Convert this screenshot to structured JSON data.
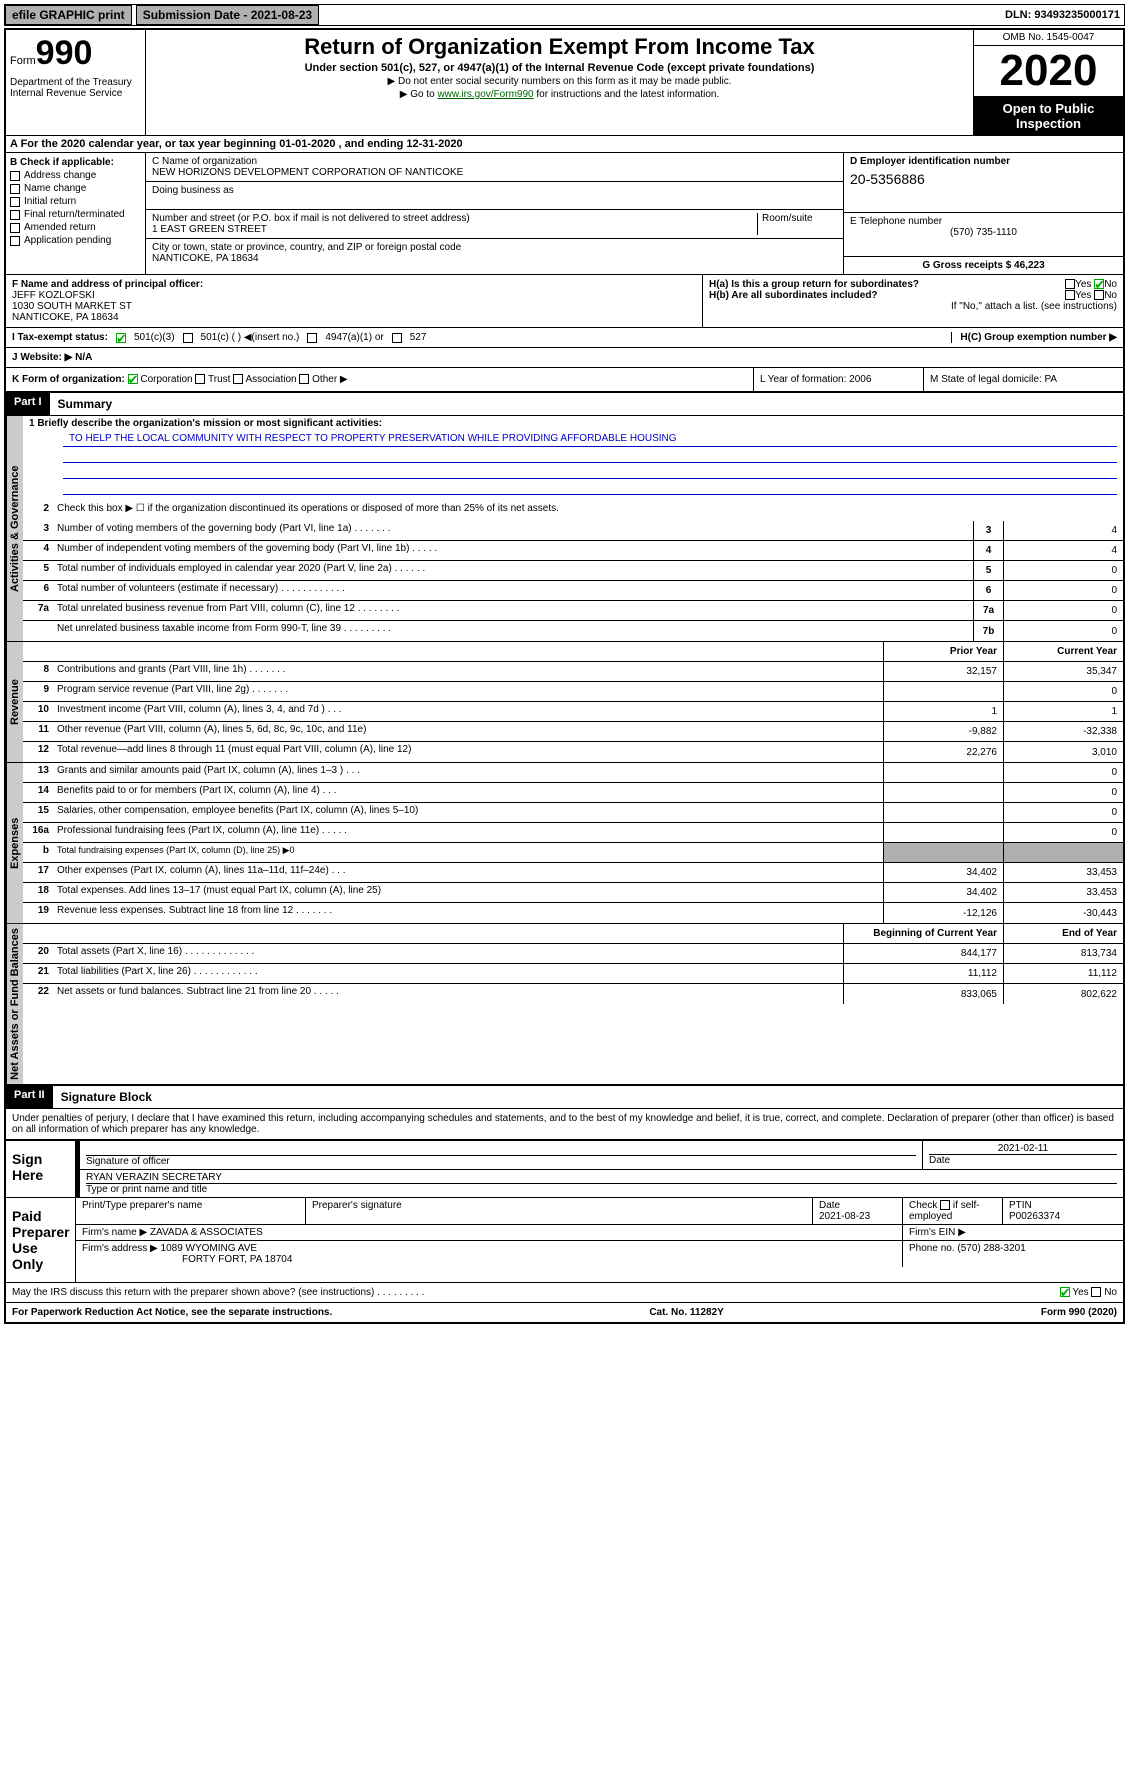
{
  "topbar": {
    "efile": "efile GRAPHIC print",
    "subdate_label": "Submission Date - 2021-08-23",
    "dln": "DLN: 93493235000171"
  },
  "header": {
    "form_label": "Form",
    "form_num": "990",
    "title": "Return of Organization Exempt From Income Tax",
    "subtitle": "Under section 501(c), 527, or 4947(a)(1) of the Internal Revenue Code (except private foundations)",
    "note1": "▶ Do not enter social security numbers on this form as it may be made public.",
    "note2_pre": "▶ Go to ",
    "note2_link": "www.irs.gov/Form990",
    "note2_post": " for instructions and the latest information.",
    "dept": "Department of the Treasury\nInternal Revenue Service",
    "omb": "OMB No. 1545-0047",
    "year": "2020",
    "open": "Open to Public Inspection"
  },
  "period": "A For the 2020 calendar year, or tax year beginning 01-01-2020    , and ending 12-31-2020",
  "checkboxes": {
    "title": "B Check if applicable:",
    "items": [
      "Address change",
      "Name change",
      "Initial return",
      "Final return/terminated",
      "Amended return",
      "Application pending"
    ]
  },
  "org": {
    "name_label": "C Name of organization",
    "name": "NEW HORIZONS DEVELOPMENT CORPORATION OF NANTICOKE",
    "dba_label": "Doing business as",
    "addr_label": "Number and street (or P.O. box if mail is not delivered to street address)",
    "room_label": "Room/suite",
    "addr": "1 EAST GREEN STREET",
    "city_label": "City or town, state or province, country, and ZIP or foreign postal code",
    "city": "NANTICOKE, PA  18634"
  },
  "ein": {
    "label": "D Employer identification number",
    "value": "20-5356886"
  },
  "phone": {
    "label": "E Telephone number",
    "value": "(570) 735-1110"
  },
  "gross": {
    "label": "G Gross receipts $ 46,223"
  },
  "officer": {
    "label": "F  Name and address of principal officer:",
    "name": "JEFF KOZLOFSKI",
    "addr1": "1030 SOUTH MARKET ST",
    "addr2": "NANTICOKE, PA  18634"
  },
  "h": {
    "a": "H(a)  Is this a group return for subordinates?",
    "b": "H(b)  Are all subordinates included?",
    "note": "If \"No,\" attach a list. (see instructions)",
    "c": "H(C)  Group exemption number ▶",
    "yes": "Yes",
    "no": "No"
  },
  "tax_status": {
    "label": "I    Tax-exempt status:",
    "opts": [
      "501(c)(3)",
      "501(c) (   ) ◀(insert no.)",
      "4947(a)(1) or",
      "527"
    ]
  },
  "website": {
    "label": "J    Website: ▶",
    "value": "N/A"
  },
  "k": {
    "label": "K Form of organization:",
    "opts": [
      "Corporation",
      "Trust",
      "Association",
      "Other ▶"
    ],
    "l": "L Year of formation: 2006",
    "m": "M State of legal domicile: PA"
  },
  "part1": {
    "header": "Part I",
    "title": "Summary",
    "line1": "1  Briefly describe the organization's mission or most significant activities:",
    "mission": "TO HELP THE LOCAL COMMUNITY WITH RESPECT TO PROPERTY PRESERVATION WHILE PROVIDING AFFORDABLE HOUSING",
    "line2": "Check this box ▶ ☐  if the organization discontinued its operations or disposed of more than 25% of its net assets.",
    "sections": {
      "gov": "Activities & Governance",
      "rev": "Revenue",
      "exp": "Expenses",
      "net": "Net Assets or Fund Balances"
    },
    "cols": {
      "prior": "Prior Year",
      "current": "Current Year",
      "begin": "Beginning of Current Year",
      "end": "End of Year"
    },
    "lines": [
      {
        "n": "3",
        "d": "Number of voting members of the governing body (Part VI, line 1a)   .   .   .   .   .   .   .",
        "box": "3",
        "v": "4"
      },
      {
        "n": "4",
        "d": "Number of independent voting members of the governing body (Part VI, line 1b)   .   .   .   .   .",
        "box": "4",
        "v": "4"
      },
      {
        "n": "5",
        "d": "Total number of individuals employed in calendar year 2020 (Part V, line 2a)   .   .   .   .   .   .",
        "box": "5",
        "v": "0"
      },
      {
        "n": "6",
        "d": "Total number of volunteers (estimate if necessary)   .   .   .   .   .   .   .   .   .   .   .   .",
        "box": "6",
        "v": "0"
      },
      {
        "n": "7a",
        "d": "Total unrelated business revenue from Part VIII, column (C), line 12   .   .   .   .   .   .   .   .",
        "box": "7a",
        "v": "0"
      },
      {
        "n": "",
        "d": "Net unrelated business taxable income from Form 990-T, line 39   .   .   .   .   .   .   .   .   .",
        "box": "7b",
        "v": "0"
      }
    ],
    "rev_lines": [
      {
        "n": "8",
        "d": "Contributions and grants (Part VIII, line 1h)   .   .   .   .   .   .   .",
        "p": "32,157",
        "c": "35,347"
      },
      {
        "n": "9",
        "d": "Program service revenue (Part VIII, line 2g)   .   .   .   .   .   .   .",
        "p": "",
        "c": "0"
      },
      {
        "n": "10",
        "d": "Investment income (Part VIII, column (A), lines 3, 4, and 7d )   .   .   .",
        "p": "1",
        "c": "1"
      },
      {
        "n": "11",
        "d": "Other revenue (Part VIII, column (A), lines 5, 6d, 8c, 9c, 10c, and 11e)",
        "p": "-9,882",
        "c": "-32,338"
      },
      {
        "n": "12",
        "d": "Total revenue—add lines 8 through 11 (must equal Part VIII, column (A), line 12)",
        "p": "22,276",
        "c": "3,010"
      }
    ],
    "exp_lines": [
      {
        "n": "13",
        "d": "Grants and similar amounts paid (Part IX, column (A), lines 1–3 )   .   .   .",
        "p": "",
        "c": "0"
      },
      {
        "n": "14",
        "d": "Benefits paid to or for members (Part IX, column (A), line 4)   .   .   .",
        "p": "",
        "c": "0"
      },
      {
        "n": "15",
        "d": "Salaries, other compensation, employee benefits (Part IX, column (A), lines 5–10)",
        "p": "",
        "c": "0"
      },
      {
        "n": "16a",
        "d": "Professional fundraising fees (Part IX, column (A), line 11e)   .   .   .   .   .",
        "p": "",
        "c": "0"
      },
      {
        "n": "b",
        "d": "Total fundraising expenses (Part IX, column (D), line 25) ▶0",
        "shaded": true
      },
      {
        "n": "17",
        "d": "Other expenses (Part IX, column (A), lines 11a–11d, 11f–24e)   .   .   .",
        "p": "34,402",
        "c": "33,453"
      },
      {
        "n": "18",
        "d": "Total expenses. Add lines 13–17 (must equal Part IX, column (A), line 25)",
        "p": "34,402",
        "c": "33,453"
      },
      {
        "n": "19",
        "d": "Revenue less expenses. Subtract line 18 from line 12   .   .   .   .   .   .   .",
        "p": "-12,126",
        "c": "-30,443"
      }
    ],
    "net_lines": [
      {
        "n": "20",
        "d": "Total assets (Part X, line 16)   .   .   .   .   .   .   .   .   .   .   .   .   .",
        "p": "844,177",
        "c": "813,734"
      },
      {
        "n": "21",
        "d": "Total liabilities (Part X, line 26)   .   .   .   .   .   .   .   .   .   .   .   .",
        "p": "11,112",
        "c": "11,112"
      },
      {
        "n": "22",
        "d": "Net assets or fund balances. Subtract line 21 from line 20   .   .   .   .   .",
        "p": "833,065",
        "c": "802,622"
      }
    ]
  },
  "part2": {
    "header": "Part II",
    "title": "Signature Block",
    "perjury": "Under penalties of perjury, I declare that I have examined this return, including accompanying schedules and statements, and to the best of my knowledge and belief, it is true, correct, and complete. Declaration of preparer (other than officer) is based on all information of which preparer has any knowledge."
  },
  "sign": {
    "label": "Sign Here",
    "sig_label": "Signature of officer",
    "date": "2021-02-11",
    "date_label": "Date",
    "name": "RYAN VERAZIN  SECRETARY",
    "name_label": "Type or print name and title"
  },
  "paid": {
    "label": "Paid Preparer Use Only",
    "h1": "Print/Type preparer's name",
    "h2": "Preparer's signature",
    "h3": "Date",
    "date": "2021-08-23",
    "h4_pre": "Check",
    "h4_post": "if self-employed",
    "h5": "PTIN",
    "ptin": "P00263374",
    "firm_label": "Firm's name    ▶",
    "firm": "ZAVADA & ASSOCIATES",
    "ein_label": "Firm's EIN ▶",
    "addr_label": "Firm's address ▶",
    "addr1": "1089 WYOMING AVE",
    "addr2": "FORTY FORT, PA  18704",
    "phone_label": "Phone no. (570) 288-3201"
  },
  "discuss": "May the IRS discuss this return with the preparer shown above? (see instructions)   .   .   .   .   .   .   .   .   .",
  "footer": {
    "left": "For Paperwork Reduction Act Notice, see the separate instructions.",
    "mid": "Cat. No. 11282Y",
    "right": "Form 990 (2020)"
  },
  "yesno": {
    "yes": "Yes",
    "no": "No"
  }
}
